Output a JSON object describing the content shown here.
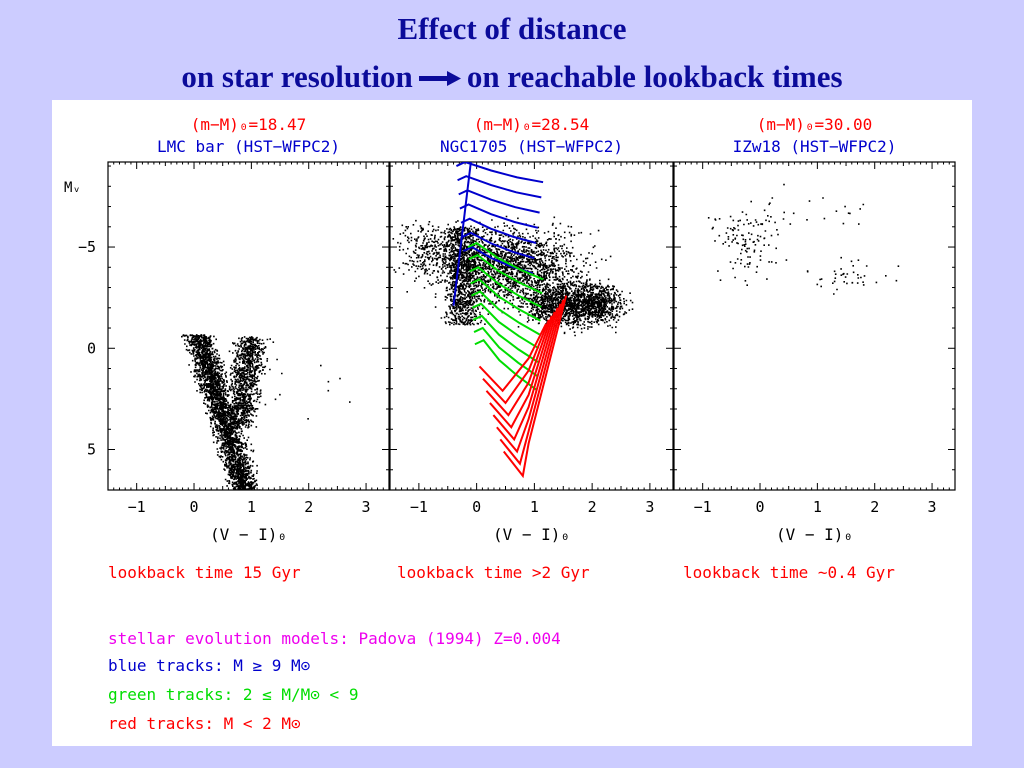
{
  "slide": {
    "title_line1": "Effect of distance",
    "title_line2_left": "on star resolution",
    "title_line2_right": "on reachable lookback times"
  },
  "colors": {
    "title": "#0b0b9a",
    "red": "#ff0000",
    "blue": "#0000cc",
    "green": "#00dd00",
    "magenta": "#ee00ee",
    "black": "#000000"
  },
  "chart_data": [
    {
      "type": "scatter",
      "distance_modulus": "(m−M)₀=18.47",
      "field": "LMC bar (HST−WFPC2)",
      "xlabel": "(V − I)₀",
      "ylabel": "Mᵥ",
      "xlim": [
        -1.5,
        3.4
      ],
      "ylim": [
        7,
        -9.2
      ],
      "x_ticks": [
        -1,
        0,
        1,
        2,
        3
      ],
      "y_ticks": [
        -5,
        0,
        5
      ],
      "lookback": "lookback time 15 Gyr",
      "features": [
        {
          "name": "main sequence",
          "points": [
            [
              -0.1,
              -0.6
            ],
            [
              0.15,
              1.5
            ],
            [
              0.35,
              3.0
            ],
            [
              0.6,
              4.2
            ],
            [
              0.8,
              5.2
            ],
            [
              1.0,
              6.3
            ]
          ]
        },
        {
          "name": "red giant branch / red clump",
          "points": [
            [
              1.1,
              4.0
            ],
            [
              0.95,
              2.5
            ],
            [
              0.85,
              1.0
            ],
            [
              0.85,
              -0.5
            ]
          ]
        }
      ]
    },
    {
      "type": "scatter",
      "distance_modulus": "(m−M)₀=28.54",
      "field": "NGC1705 (HST−WFPC2)",
      "xlabel": "(V − I)₀",
      "ylabel": "",
      "xlim": [
        -1.5,
        3.4
      ],
      "ylim": [
        7,
        -9.2
      ],
      "x_ticks": [
        -1,
        0,
        1,
        2,
        3
      ],
      "y_ticks": [
        -5,
        0,
        5
      ],
      "lookback": "lookback time >2 Gyr",
      "series": [
        {
          "name": "blue tracks: M ≥ 9 M⊙",
          "color": "#0000cc"
        },
        {
          "name": "green tracks: 2 ≤ M/M⊙ < 9",
          "color": "#00dd00"
        },
        {
          "name": "red tracks: M < 2 M⊙",
          "color": "#ff0000"
        }
      ],
      "features": [
        {
          "name": "blue plume",
          "points": [
            [
              -0.3,
              -1.5
            ],
            [
              -0.2,
              -5.5
            ]
          ]
        },
        {
          "name": "red giant branch",
          "points": [
            [
              0.8,
              -1.5
            ],
            [
              2.2,
              -1.5
            ]
          ]
        }
      ]
    },
    {
      "type": "scatter",
      "distance_modulus": "(m−M)₀=30.00",
      "field": "IZw18 (HST−WFPC2)",
      "xlabel": "(V − I)₀",
      "ylabel": "",
      "xlim": [
        -1.5,
        3.4
      ],
      "ylim": [
        7,
        -9.2
      ],
      "x_ticks": [
        -1,
        0,
        1,
        2,
        3
      ],
      "y_ticks": [
        -5,
        0,
        5
      ],
      "lookback": "lookback time ~0.4 Gyr",
      "features": [
        {
          "name": "blue group",
          "points": [
            [
              -0.5,
              -6.0
            ],
            [
              0.2,
              -5.2
            ]
          ]
        },
        {
          "name": "red group",
          "points": [
            [
              1.2,
              -4.2
            ],
            [
              1.8,
              -3.5
            ]
          ]
        }
      ]
    }
  ],
  "notes": {
    "models": "stellar evolution models: Padova (1994) Z=0.004",
    "blue": "blue tracks: M ≥ 9 M⊙",
    "green": "green tracks: 2 ≤ M/M⊙ < 9",
    "red": "red tracks: M < 2 M⊙"
  }
}
